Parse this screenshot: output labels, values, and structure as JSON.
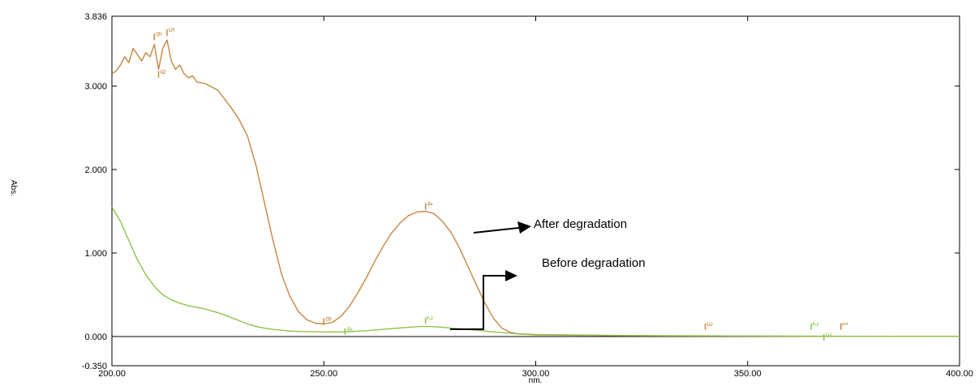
{
  "chart_data": {
    "type": "line",
    "title": "",
    "xlabel": "nm.",
    "ylabel": "Abs.",
    "xlim": [
      200,
      400
    ],
    "ylim": [
      -0.35,
      3.836
    ],
    "x_ticks": [
      200,
      250,
      300,
      350,
      400
    ],
    "x_tick_labels": [
      "200.00",
      "250.00",
      "300.00",
      "350.00",
      "400.00"
    ],
    "y_ticks": [
      -0.35,
      0,
      1,
      2,
      3,
      3.836
    ],
    "y_tick_labels": [
      "-0.350",
      "0.000",
      "1.000",
      "2.000",
      "3.000",
      "3.836"
    ],
    "grid": false,
    "series": [
      {
        "color": "#c68642",
        "points": [
          [
            200,
            3.15
          ],
          [
            201,
            3.18
          ],
          [
            202,
            3.25
          ],
          [
            203,
            3.35
          ],
          [
            204,
            3.28
          ],
          [
            205,
            3.45
          ],
          [
            206,
            3.38
          ],
          [
            207,
            3.3
          ],
          [
            208,
            3.4
          ],
          [
            209,
            3.35
          ],
          [
            210,
            3.5
          ],
          [
            211,
            3.2
          ],
          [
            212,
            3.45
          ],
          [
            213,
            3.55
          ],
          [
            214,
            3.3
          ],
          [
            215,
            3.2
          ],
          [
            216,
            3.25
          ],
          [
            217,
            3.15
          ],
          [
            218,
            3.1
          ],
          [
            219,
            3.12
          ],
          [
            220,
            3.05
          ],
          [
            222,
            3.03
          ],
          [
            225,
            2.95
          ],
          [
            228,
            2.75
          ],
          [
            230,
            2.6
          ],
          [
            232,
            2.4
          ],
          [
            234,
            2.05
          ],
          [
            236,
            1.6
          ],
          [
            238,
            1.15
          ],
          [
            240,
            0.75
          ],
          [
            242,
            0.48
          ],
          [
            244,
            0.3
          ],
          [
            246,
            0.2
          ],
          [
            248,
            0.16
          ],
          [
            250,
            0.15
          ],
          [
            252,
            0.17
          ],
          [
            254,
            0.24
          ],
          [
            256,
            0.36
          ],
          [
            258,
            0.52
          ],
          [
            260,
            0.7
          ],
          [
            262,
            0.9
          ],
          [
            264,
            1.08
          ],
          [
            266,
            1.24
          ],
          [
            268,
            1.36
          ],
          [
            270,
            1.45
          ],
          [
            272,
            1.49
          ],
          [
            274,
            1.5
          ],
          [
            276,
            1.47
          ],
          [
            278,
            1.38
          ],
          [
            280,
            1.25
          ],
          [
            282,
            1.06
          ],
          [
            284,
            0.84
          ],
          [
            286,
            0.62
          ],
          [
            288,
            0.4
          ],
          [
            290,
            0.22
          ],
          [
            292,
            0.1
          ],
          [
            294,
            0.05
          ],
          [
            296,
            0.03
          ],
          [
            300,
            0.02
          ],
          [
            320,
            0.01
          ],
          [
            340,
            0.005
          ],
          [
            360,
            0.003
          ],
          [
            380,
            0.002
          ],
          [
            400,
            0.002
          ]
        ]
      },
      {
        "color": "#8bc34a",
        "points": [
          [
            200,
            1.55
          ],
          [
            202,
            1.38
          ],
          [
            204,
            1.15
          ],
          [
            206,
            0.92
          ],
          [
            208,
            0.74
          ],
          [
            210,
            0.6
          ],
          [
            212,
            0.5
          ],
          [
            214,
            0.44
          ],
          [
            216,
            0.4
          ],
          [
            218,
            0.37
          ],
          [
            220,
            0.35
          ],
          [
            222,
            0.33
          ],
          [
            224,
            0.3
          ],
          [
            226,
            0.27
          ],
          [
            228,
            0.23
          ],
          [
            230,
            0.19
          ],
          [
            232,
            0.15
          ],
          [
            234,
            0.12
          ],
          [
            236,
            0.1
          ],
          [
            238,
            0.085
          ],
          [
            240,
            0.075
          ],
          [
            242,
            0.065
          ],
          [
            245,
            0.06
          ],
          [
            250,
            0.055
          ],
          [
            255,
            0.055
          ],
          [
            260,
            0.07
          ],
          [
            265,
            0.09
          ],
          [
            270,
            0.11
          ],
          [
            273,
            0.12
          ],
          [
            275,
            0.12
          ],
          [
            278,
            0.11
          ],
          [
            280,
            0.1
          ],
          [
            285,
            0.08
          ],
          [
            290,
            0.055
          ],
          [
            295,
            0.035
          ],
          [
            300,
            0.025
          ],
          [
            320,
            0.012
          ],
          [
            340,
            0.008
          ],
          [
            360,
            0.005
          ],
          [
            380,
            0.003
          ],
          [
            400,
            0.002
          ]
        ]
      }
    ],
    "peak_markers": [
      {
        "label": "6",
        "x": 210,
        "y": 3.55,
        "color": "#c68642"
      },
      {
        "label": "5",
        "x": 213,
        "y": 3.6,
        "color": "#c68642"
      },
      {
        "label": "9",
        "x": 211,
        "y": 3.1,
        "color": "#c68642"
      },
      {
        "label": "8",
        "x": 250,
        "y": 0.14,
        "color": "#c68642"
      },
      {
        "label": "4",
        "x": 274,
        "y": 1.52,
        "color": "#c68642"
      },
      {
        "label": "4",
        "x": 255,
        "y": 0.02,
        "color": "#8bc34a"
      },
      {
        "label": "2",
        "x": 274,
        "y": 0.15,
        "color": "#8bc34a"
      },
      {
        "label": "3",
        "x": 340,
        "y": 0.08,
        "color": "#c68642"
      },
      {
        "label": "2",
        "x": 365,
        "y": 0.08,
        "color": "#8bc34a"
      },
      {
        "label": "3",
        "x": 368,
        "y": -0.05,
        "color": "#8bc34a"
      },
      {
        "label": "1",
        "x": 372,
        "y": 0.08,
        "color": "#c68642"
      }
    ],
    "annotations": [
      "After degradation",
      "Before degradation"
    ]
  }
}
